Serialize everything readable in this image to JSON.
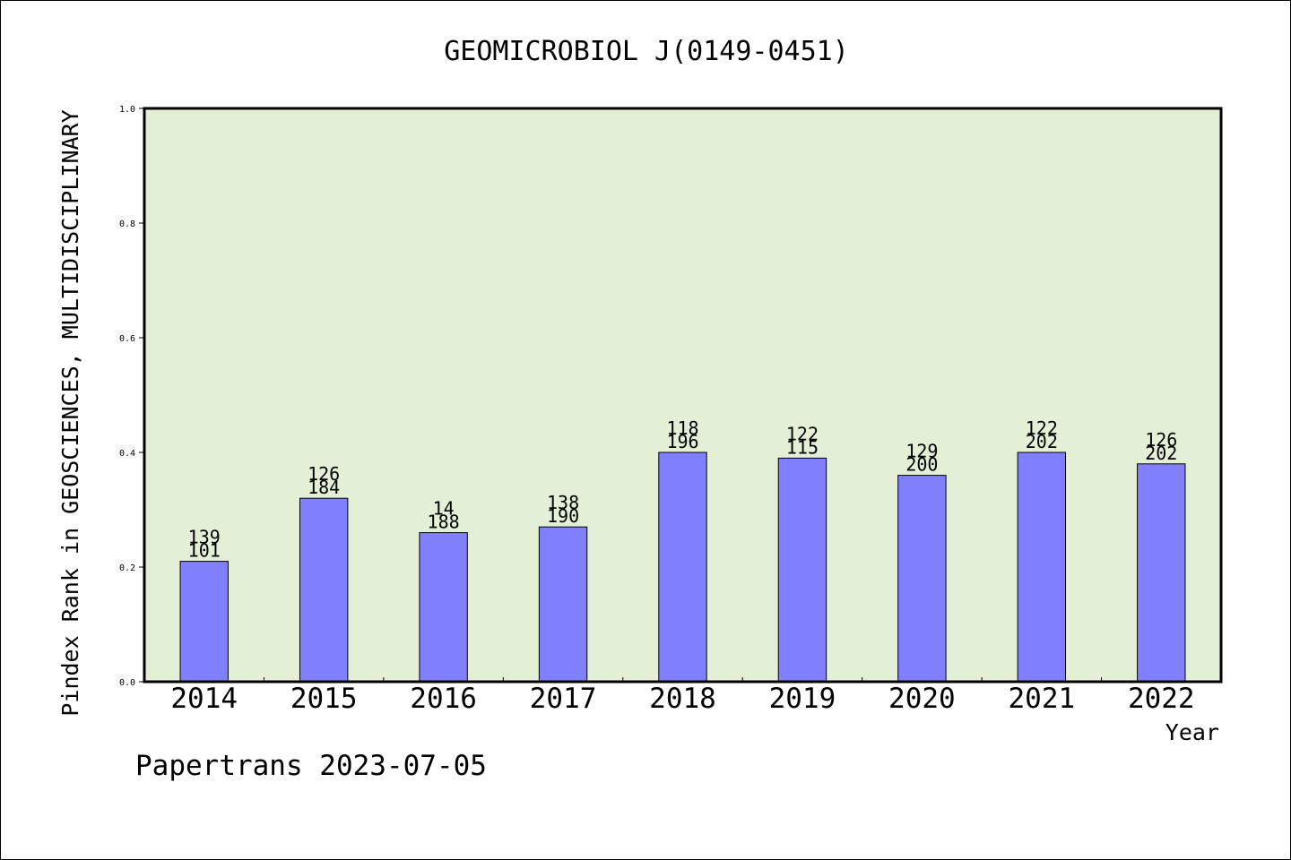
{
  "chart_data": {
    "type": "bar",
    "title": "GEOMICROBIOL J(0149-0451)",
    "xlabel": "Year",
    "ylabel": "Pindex Rank in GEOSCIENCES, MULTIDISCIPLINARY",
    "footer": "Papertrans 2023-07-05",
    "categories": [
      "2014",
      "2015",
      "2016",
      "2017",
      "2018",
      "2019",
      "2020",
      "2021",
      "2022"
    ],
    "values": [
      0.21,
      0.32,
      0.26,
      0.27,
      0.4,
      0.39,
      0.36,
      0.4,
      0.38
    ],
    "label_top": [
      "139",
      "126",
      "14",
      "138",
      "118",
      "122",
      "129",
      "122",
      "126"
    ],
    "label_bottom": [
      "101",
      "184",
      "188",
      "190",
      "196",
      "115",
      "200",
      "202",
      "202"
    ],
    "ylim": [
      0,
      1.0
    ],
    "yticks": [
      "0.0",
      "0.2",
      "0.4",
      "0.6",
      "0.8",
      "1.0"
    ],
    "grid": false,
    "colors": {
      "plot_background": "#e3f0d6",
      "bar_fill": "#8080ff",
      "bar_stroke": "#000000",
      "axis": "#000000"
    }
  }
}
